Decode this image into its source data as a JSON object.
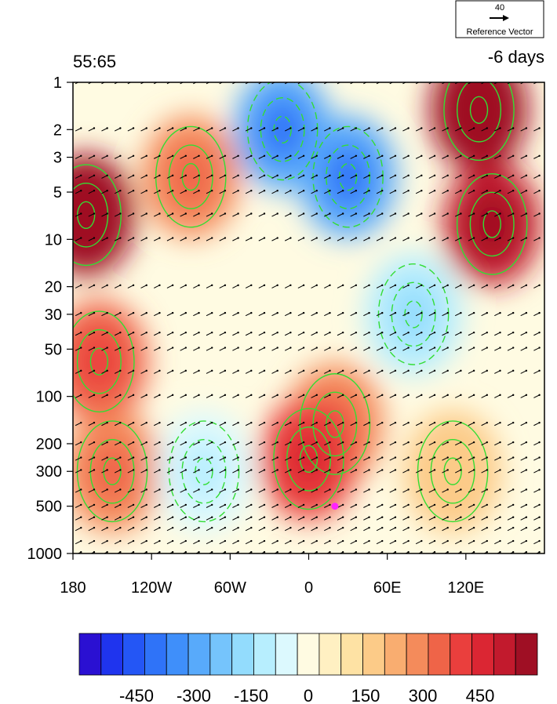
{
  "chart_data": {
    "type": "heatmap",
    "title_left": "55:65",
    "title_right": "-6 days",
    "x_ticks": [
      "180",
      "120W",
      "60W",
      "0",
      "60E",
      "120E"
    ],
    "x_tick_lon": [
      -180,
      -120,
      -60,
      0,
      60,
      120
    ],
    "xlim": [
      -180,
      180
    ],
    "y_ticks": [
      "1",
      "2",
      "3",
      "5",
      "10",
      "20",
      "30",
      "50",
      "100",
      "200",
      "300",
      "500",
      "1000"
    ],
    "y_tick_values": [
      1,
      2,
      3,
      5,
      10,
      20,
      30,
      50,
      100,
      200,
      300,
      500,
      1000
    ],
    "ylim": [
      1,
      1000
    ],
    "y_scale": "log, inverted",
    "reference_vector": {
      "value": "40",
      "label": "Reference Vector"
    },
    "colorbar": {
      "labels": [
        "-450",
        "-300",
        "-150",
        "0",
        "150",
        "300",
        "450"
      ],
      "label_values": [
        -450,
        -300,
        -150,
        0,
        150,
        300,
        450
      ],
      "levels": [
        -600,
        -550,
        -500,
        -450,
        -400,
        -350,
        -300,
        -250,
        -200,
        -150,
        -100,
        -50,
        0,
        50,
        100,
        150,
        200,
        250,
        300,
        350,
        400,
        450,
        500,
        550,
        600
      ],
      "colors": [
        "#2a10d2",
        "#1f34ee",
        "#2456f5",
        "#2f73f8",
        "#3f8ffa",
        "#58aafb",
        "#75c4fc",
        "#93dcfd",
        "#b7eefe",
        "#dcf9fe",
        "#fffbe2",
        "#fff0c2",
        "#fee2a4",
        "#fccb88",
        "#f9ad70",
        "#f48b5b",
        "#ef6448",
        "#ea3f3d",
        "#db2633",
        "#c21a2d",
        "#9f0f24"
      ]
    },
    "marker": {
      "lon": 20,
      "pressure": 500,
      "color": "#ff22ff"
    },
    "anomaly_centers": [
      {
        "lon": -170,
        "pressure": 7,
        "value": 360
      },
      {
        "lon": -160,
        "pressure": 60,
        "value": 200
      },
      {
        "lon": -150,
        "pressure": 300,
        "value": 150
      },
      {
        "lon": -90,
        "pressure": 4,
        "value": 130
      },
      {
        "lon": -80,
        "pressure": 300,
        "value": -160
      },
      {
        "lon": -20,
        "pressure": 2,
        "value": -360
      },
      {
        "lon": 30,
        "pressure": 4,
        "value": -380
      },
      {
        "lon": 80,
        "pressure": 30,
        "value": -230
      },
      {
        "lon": 20,
        "pressure": 150,
        "value": 130
      },
      {
        "lon": 0,
        "pressure": 250,
        "value": 230
      },
      {
        "lon": 130,
        "pressure": 1.5,
        "value": 480
      },
      {
        "lon": 140,
        "pressure": 8,
        "value": 320
      },
      {
        "lon": 110,
        "pressure": 300,
        "value": 40
      }
    ]
  }
}
